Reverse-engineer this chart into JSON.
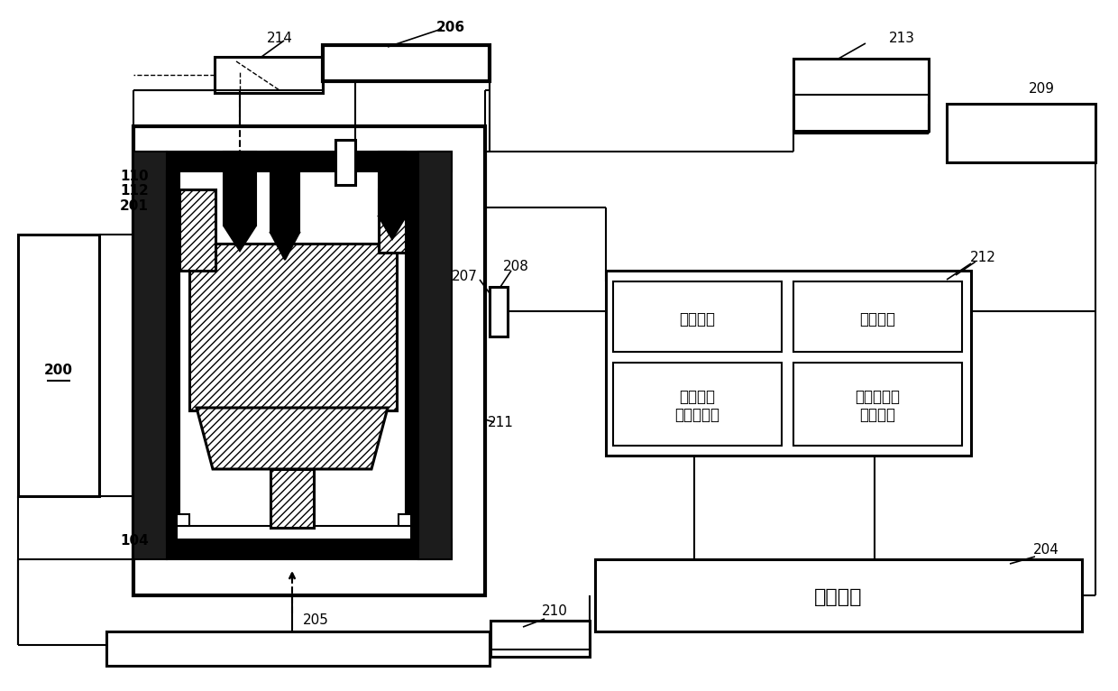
{
  "bg_color": "#ffffff",
  "line_color": "#000000",
  "module_labels": {
    "control_pressure": "控压模块",
    "control_temp": "控温模块",
    "data_process": "数据处理\n与成像模块",
    "acoustic": "声发射数据\n采集模块",
    "control_panel": "控制面板"
  },
  "label_fontsize": 11,
  "chinese_fontsize": 12,
  "panel_fontsize": 16
}
